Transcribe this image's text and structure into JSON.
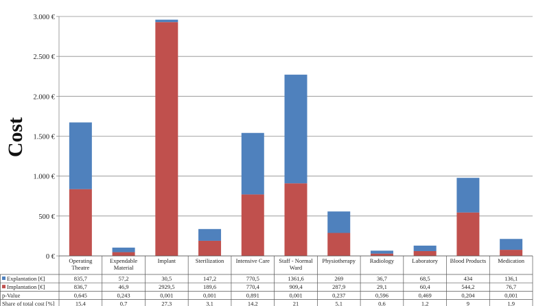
{
  "chart_data": {
    "type": "bar",
    "stacked": true,
    "ylabel": "Cost",
    "ylim": [
      0,
      3000
    ],
    "yticks": [
      0,
      500,
      1000,
      1500,
      2000,
      2500,
      3000
    ],
    "ytick_labels": [
      "0 €",
      "500 €",
      "1.000 €",
      "1.500 €",
      "2.000 €",
      "2.500 €",
      "3.000 €"
    ],
    "categories": [
      [
        "Operating",
        "Theatre"
      ],
      [
        "Expendable",
        "Material"
      ],
      [
        "Implant"
      ],
      [
        "Sterilization"
      ],
      [
        "Intensive Care"
      ],
      [
        "Staff - Normal",
        "Ward"
      ],
      [
        "Physiotherapy"
      ],
      [
        "Radiology"
      ],
      [
        "Laboratory"
      ],
      [
        "Blood Products"
      ],
      [
        "Medication"
      ]
    ],
    "series": [
      {
        "name": "Explantation [€]",
        "color": "#4F81BD",
        "values": [
          835.7,
          57.2,
          30.5,
          147.2,
          770.5,
          1361.6,
          269,
          36.7,
          68.5,
          434,
          136.1
        ],
        "labels": [
          "835,7",
          "57,2",
          "30,5",
          "147,2",
          "770,5",
          "1361,6",
          "269",
          "36,7",
          "68,5",
          "434",
          "136,1"
        ]
      },
      {
        "name": "Implantation [€]",
        "color": "#C0504D",
        "values": [
          836.7,
          46.9,
          2929.5,
          189.6,
          770.4,
          909.4,
          287.9,
          29.1,
          60.4,
          544.2,
          76.7
        ],
        "labels": [
          "836,7",
          "46,9",
          "2929,5",
          "189,6",
          "770,4",
          "909,4",
          "287,9",
          "29,1",
          "60,4",
          "544,2",
          "76,7"
        ]
      }
    ],
    "table_rows": [
      {
        "label": "p-Value",
        "values": [
          "0,645",
          "0,243",
          "0,001",
          "0,001",
          "0,891",
          "0,001",
          "0,237",
          "0,596",
          "0,469",
          "0,204",
          "0,001"
        ]
      },
      {
        "label": "Share of total cost [%]",
        "values": [
          "15,4",
          "0,7",
          "27,3",
          "3,1",
          "14,2",
          "21",
          "5,1",
          "0,6",
          "1,2",
          "9",
          "1,9"
        ]
      }
    ]
  }
}
